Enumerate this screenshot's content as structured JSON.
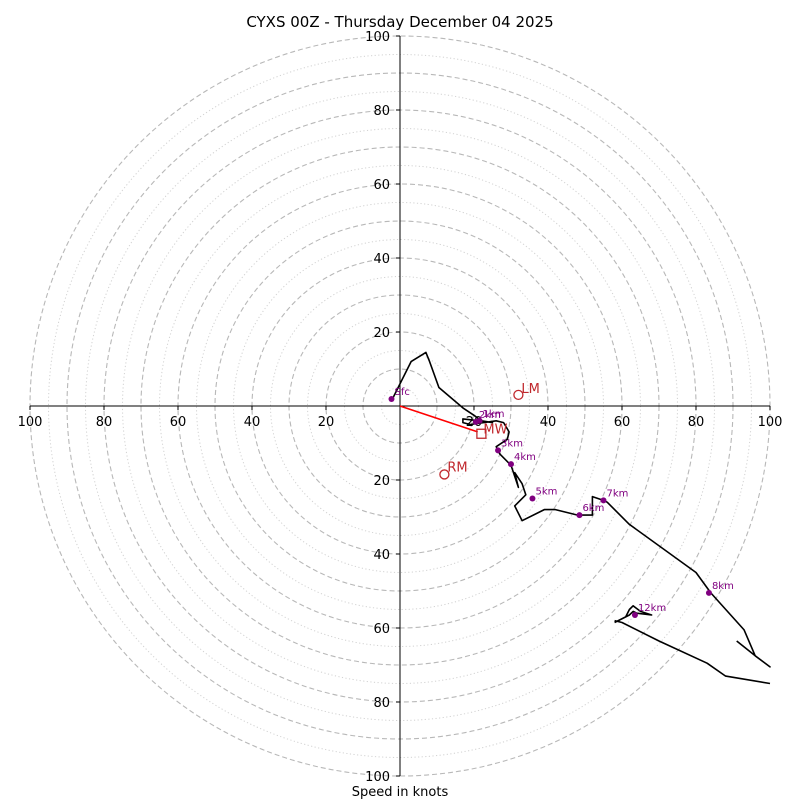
{
  "chart_data": {
    "type": "hodograph",
    "title": "CYXS 00Z - Thursday December 04 2025",
    "xlabel": "Speed in knots",
    "range": [
      -100,
      100
    ],
    "rings": {
      "major": [
        10,
        20,
        30,
        40,
        50,
        60,
        70,
        80,
        90,
        100
      ],
      "minor": [
        5,
        15,
        25,
        35,
        45,
        55,
        65,
        75,
        85,
        95
      ]
    },
    "x_ticks": [
      {
        "value": -100,
        "label": "100"
      },
      {
        "value": -80,
        "label": "80"
      },
      {
        "value": -60,
        "label": "60"
      },
      {
        "value": -40,
        "label": "40"
      },
      {
        "value": -20,
        "label": "20"
      },
      {
        "value": 20,
        "label": "20"
      },
      {
        "value": 40,
        "label": "40"
      },
      {
        "value": 60,
        "label": "60"
      },
      {
        "value": 80,
        "label": "80"
      },
      {
        "value": 100,
        "label": "100"
      }
    ],
    "y_ticks": [
      {
        "value": 100,
        "label": "100"
      },
      {
        "value": 80,
        "label": "80"
      },
      {
        "value": 60,
        "label": "60"
      },
      {
        "value": 40,
        "label": "40"
      },
      {
        "value": 20,
        "label": "20"
      },
      {
        "value": -20,
        "label": "20"
      },
      {
        "value": -40,
        "label": "40"
      },
      {
        "value": -60,
        "label": "60"
      },
      {
        "value": -80,
        "label": "80"
      },
      {
        "value": -100,
        "label": "100"
      }
    ],
    "hodograph_trace": [
      [
        -2,
        2
      ],
      [
        3,
        12
      ],
      [
        7,
        14.5
      ],
      [
        8,
        12
      ],
      [
        10.5,
        5
      ],
      [
        17,
        -0.5
      ],
      [
        20,
        -2.5
      ],
      [
        22,
        -4
      ],
      [
        25,
        -4.5
      ],
      [
        21.5,
        -4
      ],
      [
        17,
        -3.5
      ],
      [
        17,
        -4.5
      ],
      [
        19,
        -5
      ],
      [
        26,
        -4
      ],
      [
        28,
        -4.5
      ],
      [
        29.5,
        -7
      ],
      [
        29,
        -9
      ],
      [
        26,
        -11
      ],
      [
        27,
        -13
      ],
      [
        30,
        -16
      ],
      [
        32,
        -22
      ],
      [
        31,
        -18
      ],
      [
        33,
        -21
      ],
      [
        34,
        -24
      ],
      [
        31,
        -27
      ],
      [
        33,
        -31
      ],
      [
        39,
        -28
      ],
      [
        42,
        -28
      ],
      [
        48,
        -29.5
      ],
      [
        52,
        -29.5
      ],
      [
        52,
        -24.5
      ],
      [
        55,
        -25.5
      ],
      [
        56,
        -26
      ],
      [
        62,
        -32
      ],
      [
        80,
        -45
      ],
      [
        84,
        -50.5
      ],
      [
        93,
        -60.5
      ],
      [
        96,
        -67.5
      ],
      [
        100,
        -70.5
      ],
      [
        96,
        -67.5
      ],
      [
        91,
        -63.5
      ]
    ],
    "hodograph_tail": [
      [
        58,
        -58
      ],
      [
        60,
        -58.5
      ],
      [
        70,
        -63.5
      ],
      [
        83,
        -69.5
      ],
      [
        88,
        -73
      ],
      [
        100,
        -75
      ]
    ],
    "hodograph_upper": [
      [
        58,
        -58.5
      ],
      [
        62,
        -56.5
      ],
      [
        63,
        -55.5
      ],
      [
        64,
        -56
      ],
      [
        68,
        -56.5
      ],
      [
        65,
        -55.5
      ],
      [
        63,
        -54
      ],
      [
        62,
        -55
      ],
      [
        61,
        -57
      ]
    ],
    "height_markers": [
      {
        "label": "Sfc",
        "u": -2.3,
        "v": 1.9
      },
      {
        "label": "1km",
        "u": 21.5,
        "v": -4
      },
      {
        "label": "2km",
        "u": 20.5,
        "v": -4.3
      },
      {
        "label": "3km",
        "u": 26.5,
        "v": -12
      },
      {
        "label": "4km",
        "u": 30,
        "v": -15.7
      },
      {
        "label": "5km",
        "u": 35.8,
        "v": -25
      },
      {
        "label": "6km",
        "u": 48.5,
        "v": -29.5
      },
      {
        "label": "7km",
        "u": 55,
        "v": -25.5
      },
      {
        "label": "8km",
        "u": 83.5,
        "v": -50.5
      },
      {
        "label": "12km",
        "u": 63.5,
        "v": -56.5
      }
    ],
    "storm_motion": {
      "mean_wind": {
        "label": "MW",
        "u": 22,
        "v": -7.5
      },
      "left_mover": {
        "label": "LM",
        "u": 32,
        "v": 3
      },
      "right_mover": {
        "label": "RM",
        "u": 12,
        "v": -18.5
      }
    },
    "shear_vector": {
      "from": [
        0,
        0
      ],
      "to": [
        21,
        -7
      ]
    },
    "colors": {
      "trace": "#000000",
      "markers": "#800080",
      "storm": "#c0282d",
      "shear": "#ff0000"
    }
  }
}
